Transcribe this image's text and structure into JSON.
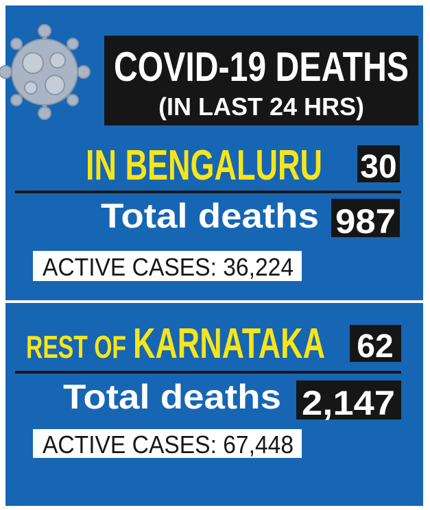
{
  "header": {
    "title": "COVID-19 DEATHS",
    "subtitle": "(IN LAST 24 HRS)"
  },
  "sections": [
    {
      "label": [
        "IN BENGALURU"
      ],
      "new_deaths": "30",
      "total_label": "Total deaths",
      "total_deaths": "987",
      "active_cases": "ACTIVE CASES: 36,224"
    },
    {
      "label": [
        "REST OF",
        "KARNATAKA"
      ],
      "new_deaths": "62",
      "total_label": "Total deaths",
      "total_deaths": "2,147",
      "active_cases": "ACTIVE CASES: 67,448"
    }
  ]
}
